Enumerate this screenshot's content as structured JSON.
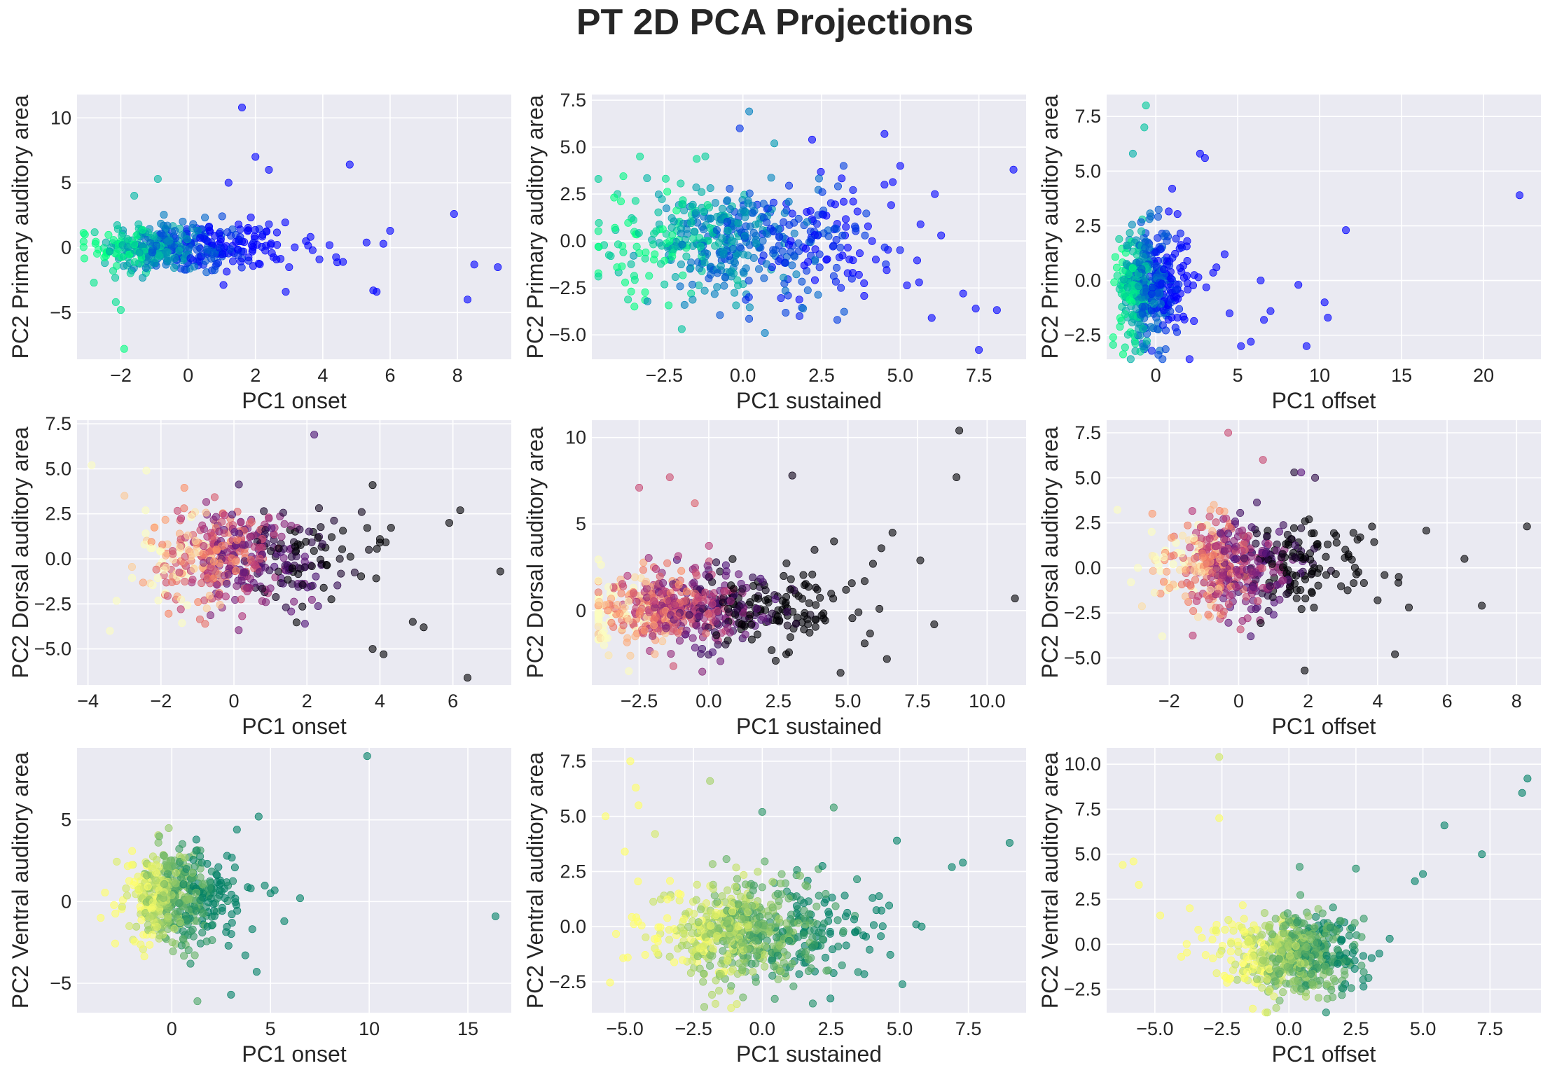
{
  "title": "PT 2D PCA Projections",
  "style": {
    "axes_bg": "#EAEAF2",
    "grid": "#FFFFFF",
    "text": "#262626"
  },
  "chart_data": [
    {
      "type": "scatter",
      "row": 0,
      "col": 0,
      "xlabel": "PC1 onset",
      "ylabel": "PC2 Primary auditory area",
      "xlim": [
        -3.3,
        9.6
      ],
      "ylim": [
        -8.6,
        11.8
      ],
      "xticks": [
        -2,
        0,
        2,
        4,
        6,
        8
      ],
      "xtick_labels": [
        "−2",
        "0",
        "2",
        "4",
        "6",
        "8"
      ],
      "yticks": [
        -5,
        0,
        5,
        10
      ],
      "ytick_labels": [
        "−5",
        "0",
        "5",
        "10"
      ],
      "grid": true,
      "colormap": "winter",
      "alpha": 0.6,
      "cloud": {
        "cx": -0.6,
        "cy": 0.0,
        "sx": 1.0,
        "sy": 1.0,
        "n": 420,
        "skew_x": 1.6
      },
      "points": [
        [
          1.6,
          10.8
        ],
        [
          2.0,
          7.0
        ],
        [
          2.4,
          6.0
        ],
        [
          4.8,
          6.4
        ],
        [
          1.2,
          5.0
        ],
        [
          -0.9,
          5.3
        ],
        [
          -1.6,
          4.0
        ],
        [
          -2.0,
          -4.8
        ],
        [
          -1.9,
          -7.8
        ],
        [
          -2.8,
          -2.7
        ],
        [
          7.9,
          2.6
        ],
        [
          8.5,
          -1.3
        ],
        [
          9.2,
          -1.5
        ],
        [
          8.3,
          -4.0
        ],
        [
          6.0,
          1.3
        ],
        [
          5.8,
          0.3
        ],
        [
          5.5,
          -3.3
        ],
        [
          5.6,
          -3.4
        ],
        [
          4.6,
          -1.1
        ],
        [
          3.5,
          0.5
        ],
        [
          3.9,
          -0.9
        ],
        [
          5.3,
          0.4
        ],
        [
          2.9,
          -3.4
        ],
        [
          3.0,
          -1.5
        ],
        [
          2.4,
          1.8
        ],
        [
          4.2,
          0.2
        ]
      ]
    },
    {
      "type": "scatter",
      "row": 0,
      "col": 1,
      "xlabel": "PC1 sustained",
      "ylabel": "PC2 Primary auditory area",
      "xlim": [
        -4.8,
        9.0
      ],
      "ylim": [
        -6.3,
        7.8
      ],
      "xticks": [
        -2.5,
        0.0,
        2.5,
        5.0,
        7.5
      ],
      "xtick_labels": [
        "−2.5",
        "0.0",
        "2.5",
        "5.0",
        "7.5"
      ],
      "yticks": [
        -5.0,
        -2.5,
        0.0,
        2.5,
        5.0,
        7.5
      ],
      "ytick_labels": [
        "−5.0",
        "−2.5",
        "0.0",
        "2.5",
        "5.0",
        "7.5"
      ],
      "grid": true,
      "colormap": "winter",
      "alpha": 0.6,
      "cloud": {
        "cx": -0.4,
        "cy": 0.0,
        "sx": 1.9,
        "sy": 1.5,
        "n": 520,
        "skew_x": 0.6
      },
      "points": [
        [
          0.2,
          6.9
        ],
        [
          -0.1,
          6.0
        ],
        [
          4.5,
          5.7
        ],
        [
          8.6,
          3.8
        ],
        [
          7.5,
          -5.8
        ],
        [
          7.4,
          -3.6
        ],
        [
          7.0,
          -2.8
        ],
        [
          6.0,
          -4.1
        ],
        [
          5.6,
          -2.2
        ],
        [
          5.0,
          4.0
        ],
        [
          4.5,
          3.0
        ],
        [
          3.2,
          4.0
        ],
        [
          2.2,
          5.4
        ],
        [
          1.0,
          5.2
        ],
        [
          -4.2,
          -0.8
        ],
        [
          -4.0,
          -1.4
        ],
        [
          -3.8,
          -0.6
        ],
        [
          0.7,
          -4.9
        ],
        [
          1.8,
          -4.0
        ],
        [
          3.0,
          -4.2
        ],
        [
          6.1,
          2.5
        ],
        [
          6.3,
          0.3
        ]
      ]
    },
    {
      "type": "scatter",
      "row": 0,
      "col": 2,
      "xlabel": "PC1 offset",
      "ylabel": "PC2 Primary auditory area",
      "xlim": [
        -3.0,
        23.5
      ],
      "ylim": [
        -3.6,
        8.5
      ],
      "xticks": [
        0,
        5,
        10,
        15,
        20
      ],
      "xtick_labels": [
        "0",
        "5",
        "10",
        "15",
        "20"
      ],
      "yticks": [
        -2.5,
        0.0,
        2.5,
        5.0,
        7.5
      ],
      "ytick_labels": [
        "−2.5",
        "0.0",
        "2.5",
        "5.0",
        "7.5"
      ],
      "grid": true,
      "colormap": "winter",
      "alpha": 0.6,
      "cloud": {
        "cx": -0.6,
        "cy": -0.2,
        "sx": 0.8,
        "sy": 1.3,
        "n": 460,
        "skew_x": 1.2
      },
      "points": [
        [
          22.2,
          3.9
        ],
        [
          11.6,
          2.3
        ],
        [
          10.5,
          -1.7
        ],
        [
          10.3,
          -1.0
        ],
        [
          9.2,
          -3.0
        ],
        [
          8.7,
          -0.2
        ],
        [
          7.0,
          -1.4
        ],
        [
          6.6,
          -1.8
        ],
        [
          6.4,
          0.0
        ],
        [
          5.8,
          -2.8
        ],
        [
          5.2,
          -3.0
        ],
        [
          4.5,
          -1.5
        ],
        [
          4.2,
          1.2
        ],
        [
          3.7,
          0.6
        ],
        [
          2.7,
          5.8
        ],
        [
          3.0,
          5.6
        ],
        [
          -0.6,
          8.0
        ],
        [
          -0.7,
          7.0
        ],
        [
          -1.4,
          5.8
        ],
        [
          1.0,
          4.2
        ]
      ]
    },
    {
      "type": "scatter",
      "row": 1,
      "col": 0,
      "xlabel": "PC1 onset",
      "ylabel": "PC2 Dorsal auditory area",
      "xlim": [
        -4.3,
        7.6
      ],
      "ylim": [
        -7.0,
        7.7
      ],
      "xticks": [
        -4,
        -2,
        0,
        2,
        4,
        6
      ],
      "xtick_labels": [
        "−4",
        "−2",
        "0",
        "2",
        "4",
        "6"
      ],
      "yticks": [
        -5.0,
        -2.5,
        0.0,
        2.5,
        5.0,
        7.5
      ],
      "ytick_labels": [
        "−5.0",
        "−2.5",
        "0.0",
        "2.5",
        "5.0",
        "7.5"
      ],
      "grid": true,
      "colormap": "magma",
      "alpha": 0.6,
      "cloud": {
        "cx": 0.0,
        "cy": 0.1,
        "sx": 1.2,
        "sy": 1.4,
        "n": 480,
        "skew_x": 0.5
      },
      "points": [
        [
          2.2,
          6.9
        ],
        [
          -3.9,
          5.2
        ],
        [
          -2.4,
          4.9
        ],
        [
          6.2,
          2.7
        ],
        [
          5.9,
          2.0
        ],
        [
          6.4,
          -6.6
        ],
        [
          7.3,
          -0.7
        ],
        [
          4.0,
          1.1
        ],
        [
          4.0,
          0.9
        ],
        [
          3.8,
          4.1
        ],
        [
          4.1,
          -5.3
        ],
        [
          3.8,
          -5.0
        ],
        [
          4.9,
          -3.5
        ],
        [
          5.2,
          -3.8
        ],
        [
          -3.4,
          -4.0
        ],
        [
          -3.0,
          3.5
        ],
        [
          3.5,
          2.6
        ],
        [
          2.9,
          0.0
        ]
      ]
    },
    {
      "type": "scatter",
      "row": 1,
      "col": 1,
      "xlabel": "PC1 sustained",
      "ylabel": "PC2 Dorsal auditory area",
      "xlim": [
        -4.2,
        11.4
      ],
      "ylim": [
        -4.3,
        11.0
      ],
      "xticks": [
        -2.5,
        0.0,
        2.5,
        5.0,
        7.5,
        10.0
      ],
      "xtick_labels": [
        "−2.5",
        "0.0",
        "2.5",
        "5.0",
        "7.5",
        "10.0"
      ],
      "yticks": [
        0,
        5,
        10
      ],
      "ytick_labels": [
        "0",
        "5",
        "10"
      ],
      "grid": true,
      "colormap": "magma",
      "alpha": 0.6,
      "cloud": {
        "cx": -1.0,
        "cy": 0.1,
        "sx": 1.6,
        "sy": 1.2,
        "n": 620,
        "skew_x": 1.0
      },
      "points": [
        [
          9.0,
          10.4
        ],
        [
          8.9,
          7.7
        ],
        [
          11.0,
          0.7
        ],
        [
          8.1,
          -0.8
        ],
        [
          7.6,
          2.9
        ],
        [
          6.6,
          4.5
        ],
        [
          6.2,
          3.6
        ],
        [
          6.4,
          -2.8
        ],
        [
          5.6,
          -1.9
        ],
        [
          5.9,
          2.7
        ],
        [
          3.0,
          7.8
        ],
        [
          -1.4,
          7.7
        ],
        [
          -2.5,
          7.1
        ],
        [
          -0.5,
          6.2
        ],
        [
          5.6,
          1.7
        ],
        [
          4.5,
          4.0
        ],
        [
          3.8,
          3.5
        ]
      ]
    },
    {
      "type": "scatter",
      "row": 1,
      "col": 2,
      "xlabel": "PC1 offset",
      "ylabel": "PC2 Dorsal auditory area",
      "xlim": [
        -3.8,
        8.7
      ],
      "ylim": [
        -6.5,
        8.2
      ],
      "xticks": [
        -2,
        0,
        2,
        4,
        6,
        8
      ],
      "xtick_labels": [
        "−2",
        "0",
        "2",
        "4",
        "6",
        "8"
      ],
      "yticks": [
        -5.0,
        -2.5,
        0.0,
        2.5,
        5.0,
        7.5
      ],
      "ytick_labels": [
        "−5.0",
        "−2.5",
        "0.0",
        "2.5",
        "5.0",
        "7.5"
      ],
      "grid": true,
      "colormap": "magma",
      "alpha": 0.6,
      "cloud": {
        "cx": -0.2,
        "cy": 0.2,
        "sx": 1.0,
        "sy": 1.3,
        "n": 520,
        "skew_x": 1.3
      },
      "points": [
        [
          -0.3,
          7.5
        ],
        [
          0.7,
          6.0
        ],
        [
          1.6,
          5.3
        ],
        [
          2.2,
          5.0
        ],
        [
          1.8,
          5.3
        ],
        [
          8.3,
          2.3
        ],
        [
          7.0,
          -2.1
        ],
        [
          6.5,
          0.5
        ],
        [
          4.5,
          -4.8
        ],
        [
          4.9,
          -2.2
        ],
        [
          4.0,
          -1.8
        ],
        [
          3.5,
          1.7
        ],
        [
          4.2,
          -0.4
        ],
        [
          1.9,
          -5.7
        ],
        [
          -2.2,
          -3.8
        ],
        [
          -2.9,
          0.0
        ],
        [
          -3.1,
          -0.8
        ]
      ]
    },
    {
      "type": "scatter",
      "row": 2,
      "col": 0,
      "xlabel": "PC1 onset",
      "ylabel": "PC2 Ventral auditory area",
      "xlim": [
        -4.8,
        17.2
      ],
      "ylim": [
        -6.8,
        9.4
      ],
      "xticks": [
        0,
        5,
        10,
        15
      ],
      "xtick_labels": [
        "0",
        "5",
        "10",
        "15"
      ],
      "yticks": [
        -5,
        0,
        5
      ],
      "ytick_labels": [
        "−5",
        "0",
        "5"
      ],
      "grid": true,
      "colormap": "summer",
      "alpha": 0.6,
      "cloud": {
        "cx": 0.0,
        "cy": 0.2,
        "sx": 1.1,
        "sy": 1.4,
        "n": 480,
        "skew_x": 0.9
      },
      "points": [
        [
          9.9,
          8.9
        ],
        [
          16.4,
          -0.9
        ],
        [
          4.4,
          5.2
        ],
        [
          3.3,
          4.4
        ],
        [
          5.7,
          -1.2
        ],
        [
          6.5,
          0.2
        ],
        [
          4.3,
          -4.3
        ],
        [
          3.0,
          -5.7
        ],
        [
          1.3,
          -6.1
        ],
        [
          -3.6,
          -1.0
        ],
        [
          4.0,
          0.8
        ],
        [
          2.8,
          2.8
        ],
        [
          5.0,
          0.5
        ]
      ]
    },
    {
      "type": "scatter",
      "row": 2,
      "col": 1,
      "xlabel": "PC1 sustained",
      "ylabel": "PC2 Ventral auditory area",
      "xlim": [
        -6.2,
        9.6
      ],
      "ylim": [
        -3.9,
        8.1
      ],
      "xticks": [
        -5.0,
        -2.5,
        0.0,
        2.5,
        5.0,
        7.5
      ],
      "xtick_labels": [
        "−5.0",
        "−2.5",
        "0.0",
        "2.5",
        "5.0",
        "7.5"
      ],
      "yticks": [
        -2.5,
        0.0,
        2.5,
        5.0,
        7.5
      ],
      "ytick_labels": [
        "−2.5",
        "0.0",
        "2.5",
        "5.0",
        "7.5"
      ],
      "grid": true,
      "colormap": "summer",
      "alpha": 0.6,
      "cloud": {
        "cx": -0.4,
        "cy": -0.3,
        "sx": 1.6,
        "sy": 1.2,
        "n": 640,
        "skew_x": 0.5
      },
      "points": [
        [
          -4.8,
          7.5
        ],
        [
          -5.7,
          5.0
        ],
        [
          -4.6,
          6.3
        ],
        [
          -4.5,
          5.5
        ],
        [
          -1.9,
          6.6
        ],
        [
          9.0,
          3.8
        ],
        [
          7.3,
          2.9
        ],
        [
          6.9,
          2.7
        ],
        [
          5.8,
          0.0
        ],
        [
          5.6,
          0.1
        ],
        [
          4.9,
          3.9
        ],
        [
          2.6,
          5.4
        ],
        [
          0.0,
          5.2
        ],
        [
          -3.9,
          4.2
        ],
        [
          -5.0,
          3.4
        ]
      ]
    },
    {
      "type": "scatter",
      "row": 2,
      "col": 2,
      "xlabel": "PC1 offset",
      "ylabel": "PC2 Ventral auditory area",
      "xlim": [
        -6.8,
        9.4
      ],
      "ylim": [
        -3.8,
        10.9
      ],
      "xticks": [
        -5.0,
        -2.5,
        0.0,
        2.5,
        5.0,
        7.5
      ],
      "xtick_labels": [
        "−5.0",
        "−2.5",
        "0.0",
        "2.5",
        "5.0",
        "7.5"
      ],
      "yticks": [
        -2.5,
        0.0,
        2.5,
        5.0,
        7.5,
        10.0
      ],
      "ytick_labels": [
        "−2.5",
        "0.0",
        "2.5",
        "5.0",
        "7.5",
        "10.0"
      ],
      "grid": true,
      "colormap": "summer",
      "alpha": 0.6,
      "cloud": {
        "cx": 0.2,
        "cy": -0.5,
        "sx": 1.2,
        "sy": 1.1,
        "n": 560,
        "skew_x": -0.4
      },
      "points": [
        [
          -2.6,
          10.4
        ],
        [
          -2.6,
          7.0
        ],
        [
          8.9,
          9.2
        ],
        [
          8.7,
          8.4
        ],
        [
          5.8,
          6.6
        ],
        [
          7.2,
          5.0
        ],
        [
          5.0,
          3.9
        ],
        [
          4.7,
          3.5
        ],
        [
          -6.2,
          4.4
        ],
        [
          -5.8,
          4.6
        ],
        [
          -5.6,
          3.3
        ],
        [
          -4.8,
          1.6
        ],
        [
          0.4,
          4.3
        ],
        [
          2.5,
          4.2
        ],
        [
          -3.7,
          2.0
        ]
      ]
    }
  ]
}
